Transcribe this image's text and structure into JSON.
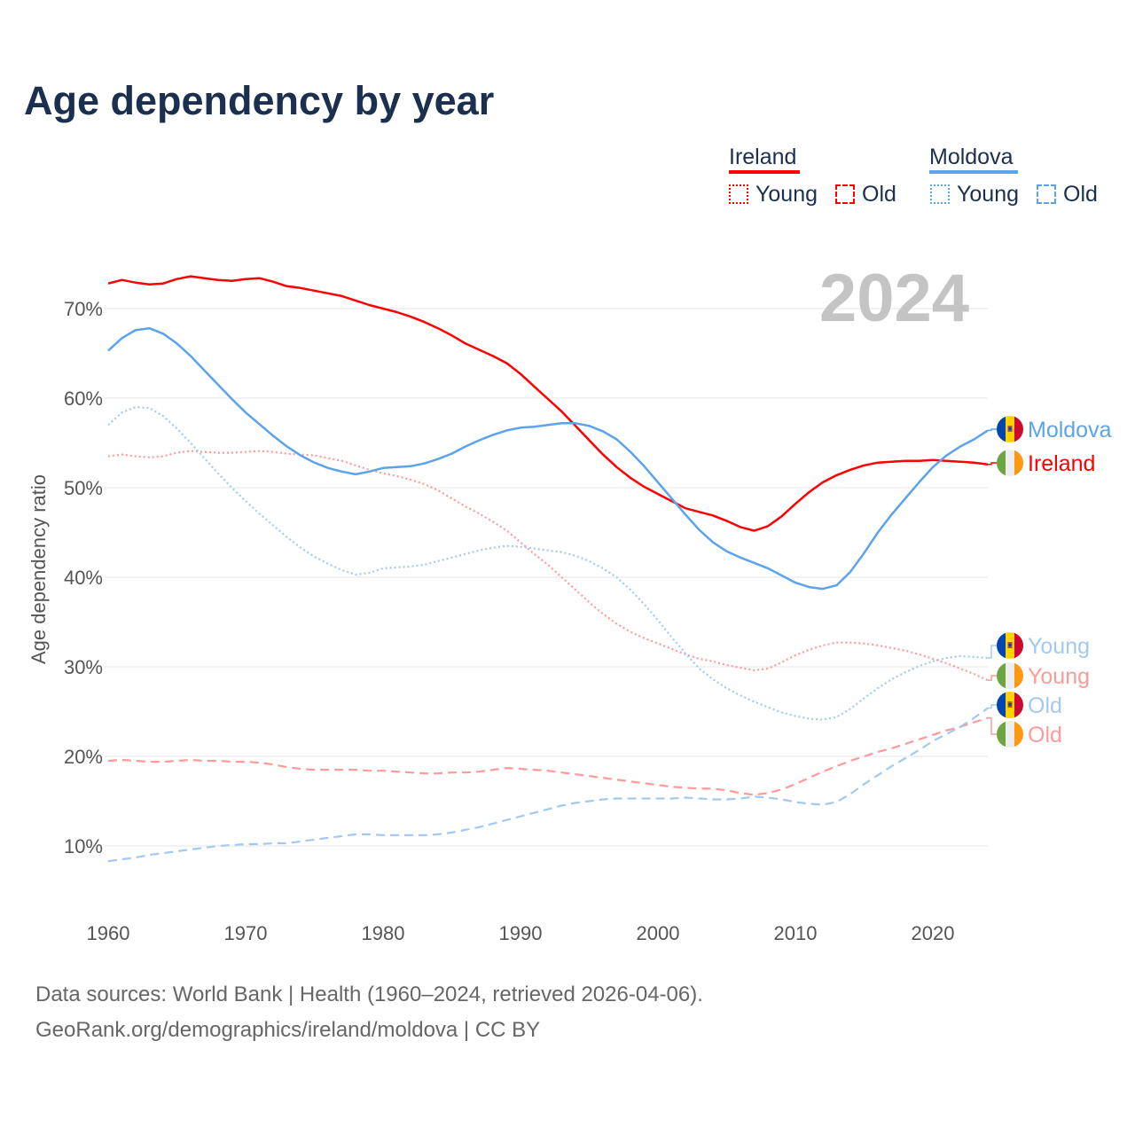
{
  "title": "Age dependency by year",
  "legend": {
    "groups": [
      {
        "name": "Ireland",
        "color": "#ff0000",
        "young": "Young",
        "old": "Old"
      },
      {
        "name": "Moldova",
        "color": "#5ba3ec",
        "young": "Young",
        "old": "Old"
      }
    ]
  },
  "year_watermark": "2024",
  "footer": {
    "line1": "Data sources: World Bank | Health (1960–2024, retrieved 2026-04-06).",
    "line2": "GeoRank.org/demographics/ireland/moldova | CC BY"
  },
  "end_labels": {
    "moldova": "Moldova",
    "ireland": "Ireland",
    "moldova_young": "Young",
    "ireland_young": "Young",
    "moldova_old": "Old",
    "ireland_old": "Old"
  },
  "chart_data": {
    "type": "line",
    "title": "Age dependency by year",
    "xlabel": "",
    "ylabel": "Age dependency ratio",
    "xlim": [
      1960,
      2024
    ],
    "ylim": [
      4,
      76
    ],
    "x_ticks": [
      "1960",
      "1970",
      "1980",
      "1990",
      "2000",
      "2010",
      "2020"
    ],
    "y_ticks": [
      "10%",
      "20%",
      "30%",
      "40%",
      "50%",
      "60%",
      "70%"
    ],
    "grid": true,
    "legend_position": "top-right",
    "x_start": 1960,
    "series": [
      {
        "name": "Ireland",
        "key": "ireland",
        "color": "#ff0000",
        "style": "solid",
        "values": [
          72.8,
          73.2,
          72.9,
          72.7,
          72.8,
          73.3,
          73.6,
          73.4,
          73.2,
          73.1,
          73.3,
          73.4,
          73.0,
          72.5,
          72.3,
          72.0,
          71.7,
          71.4,
          70.9,
          70.4,
          70.0,
          69.6,
          69.1,
          68.5,
          67.8,
          67.0,
          66.1,
          65.4,
          64.7,
          63.9,
          62.7,
          61.3,
          59.9,
          58.5,
          56.9,
          55.3,
          53.7,
          52.3,
          51.1,
          50.1,
          49.3,
          48.5,
          47.7,
          47.3,
          46.9,
          46.3,
          45.6,
          45.2,
          45.7,
          46.8,
          48.2,
          49.5,
          50.6,
          51.4,
          52.0,
          52.5,
          52.8,
          52.9,
          53.0,
          53.0,
          53.1,
          53.0,
          52.9,
          52.8,
          52.6
        ]
      },
      {
        "name": "Moldova",
        "key": "moldova",
        "color": "#5ba3ec",
        "style": "solid",
        "values": [
          65.3,
          66.7,
          67.6,
          67.8,
          67.2,
          66.1,
          64.7,
          63.1,
          61.5,
          59.9,
          58.4,
          57.1,
          55.8,
          54.6,
          53.6,
          52.8,
          52.2,
          51.8,
          51.5,
          51.8,
          52.2,
          52.3,
          52.4,
          52.7,
          53.2,
          53.8,
          54.6,
          55.3,
          55.9,
          56.4,
          56.7,
          56.8,
          57.0,
          57.2,
          57.2,
          56.9,
          56.3,
          55.4,
          54.0,
          52.4,
          50.6,
          48.8,
          47.0,
          45.3,
          43.9,
          42.9,
          42.2,
          41.6,
          41.0,
          40.2,
          39.4,
          38.9,
          38.7,
          39.1,
          40.6,
          42.7,
          45.0,
          47.0,
          48.8,
          50.6,
          52.3,
          53.6,
          54.6,
          55.4,
          56.4
        ]
      },
      {
        "name": "Ireland Young",
        "key": "ireland_young",
        "color": "#ff9a9a",
        "style": "dotted",
        "values": [
          53.5,
          53.7,
          53.5,
          53.4,
          53.5,
          53.9,
          54.1,
          54.0,
          53.9,
          53.9,
          54.0,
          54.1,
          54.0,
          53.8,
          53.7,
          53.6,
          53.3,
          53.0,
          52.5,
          52.0,
          51.6,
          51.3,
          50.9,
          50.4,
          49.7,
          48.8,
          47.9,
          47.1,
          46.2,
          45.2,
          43.9,
          42.6,
          41.4,
          40.0,
          38.6,
          37.2,
          35.9,
          34.8,
          33.9,
          33.2,
          32.6,
          32.0,
          31.4,
          30.9,
          30.6,
          30.2,
          29.9,
          29.6,
          29.8,
          30.5,
          31.3,
          31.9,
          32.4,
          32.7,
          32.7,
          32.6,
          32.4,
          32.1,
          31.8,
          31.4,
          30.9,
          30.4,
          29.8,
          29.2,
          28.5
        ]
      },
      {
        "name": "Moldova Young",
        "key": "moldova_young",
        "color": "#a3c9f1",
        "style": "dotted",
        "values": [
          57.0,
          58.4,
          59.0,
          58.9,
          58.0,
          56.6,
          55.0,
          53.3,
          51.6,
          50.0,
          48.5,
          47.1,
          45.8,
          44.5,
          43.3,
          42.3,
          41.5,
          40.8,
          40.3,
          40.5,
          41.0,
          41.1,
          41.2,
          41.4,
          41.8,
          42.2,
          42.6,
          43.0,
          43.3,
          43.5,
          43.4,
          43.2,
          43.0,
          42.8,
          42.4,
          41.8,
          41.0,
          40.0,
          38.6,
          37.0,
          35.2,
          33.3,
          31.5,
          29.8,
          28.6,
          27.6,
          26.8,
          26.1,
          25.5,
          24.9,
          24.5,
          24.2,
          24.1,
          24.4,
          25.3,
          26.5,
          27.6,
          28.6,
          29.4,
          30.1,
          30.6,
          31.0,
          31.2,
          31.1,
          31.0
        ]
      },
      {
        "name": "Ireland Old",
        "key": "ireland_old",
        "color": "#ff9a9a",
        "style": "dashed",
        "values": [
          19.5,
          19.6,
          19.5,
          19.4,
          19.4,
          19.5,
          19.6,
          19.5,
          19.5,
          19.4,
          19.4,
          19.3,
          19.1,
          18.8,
          18.6,
          18.5,
          18.5,
          18.5,
          18.5,
          18.4,
          18.4,
          18.3,
          18.2,
          18.1,
          18.1,
          18.2,
          18.2,
          18.3,
          18.5,
          18.7,
          18.6,
          18.5,
          18.4,
          18.2,
          18.0,
          17.8,
          17.6,
          17.4,
          17.2,
          17.0,
          16.8,
          16.6,
          16.5,
          16.4,
          16.4,
          16.2,
          15.9,
          15.7,
          15.9,
          16.3,
          16.9,
          17.6,
          18.3,
          18.9,
          19.5,
          20.0,
          20.5,
          20.9,
          21.4,
          21.9,
          22.4,
          22.9,
          23.3,
          23.8,
          24.3
        ]
      },
      {
        "name": "Moldova Old",
        "key": "moldova_old",
        "color": "#a3c9f1",
        "style": "dashed",
        "values": [
          8.3,
          8.5,
          8.7,
          9.0,
          9.2,
          9.4,
          9.6,
          9.8,
          10.0,
          10.1,
          10.2,
          10.2,
          10.3,
          10.3,
          10.5,
          10.7,
          10.9,
          11.1,
          11.3,
          11.3,
          11.2,
          11.2,
          11.2,
          11.2,
          11.3,
          11.5,
          11.8,
          12.1,
          12.5,
          12.9,
          13.3,
          13.7,
          14.1,
          14.5,
          14.8,
          15.0,
          15.2,
          15.3,
          15.3,
          15.3,
          15.3,
          15.3,
          15.4,
          15.3,
          15.2,
          15.2,
          15.3,
          15.5,
          15.4,
          15.2,
          14.9,
          14.7,
          14.6,
          14.9,
          15.8,
          16.9,
          17.9,
          18.9,
          19.8,
          20.7,
          21.7,
          22.5,
          23.3,
          24.3,
          25.4
        ]
      }
    ]
  }
}
